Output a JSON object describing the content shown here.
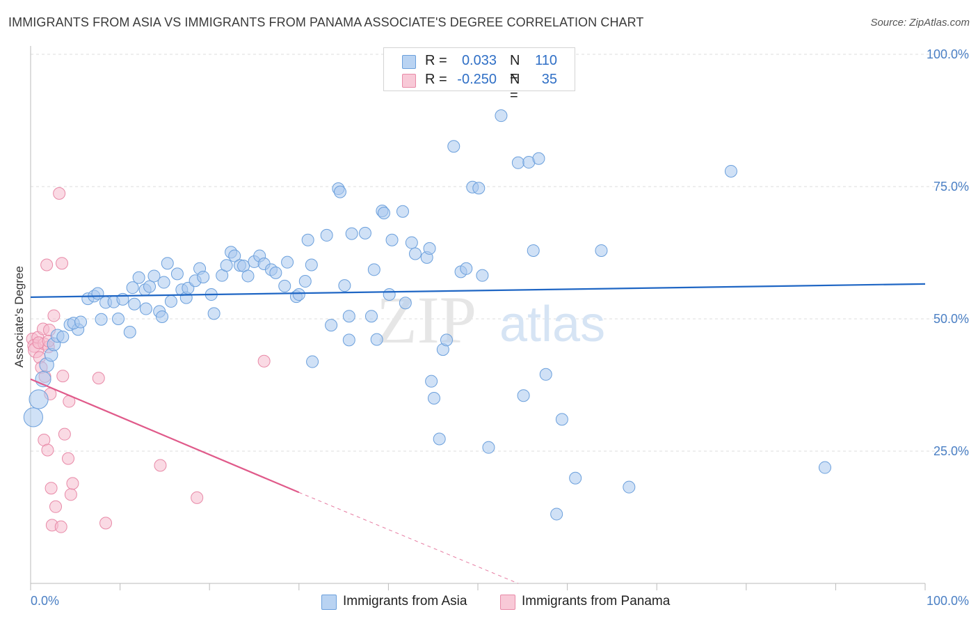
{
  "title": "IMMIGRANTS FROM ASIA VS IMMIGRANTS FROM PANAMA ASSOCIATE'S DEGREE CORRELATION CHART",
  "source": "Source: ZipAtlas.com",
  "colors": {
    "asia_fill": "#a9c8ef",
    "asia_stroke": "#6a9fdc",
    "asia_line": "#1f66c4",
    "panama_fill": "#f6bccd",
    "panama_stroke": "#e889a7",
    "panama_line": "#e05a8a",
    "axis_text": "#4a7fc4",
    "grid": "#dedede"
  },
  "legend": {
    "rows": [
      {
        "r_label": "R =",
        "r_value": "0.033",
        "n_label": "N =",
        "n_value": "110"
      },
      {
        "r_label": "R =",
        "r_value": "-0.250",
        "n_label": "N =",
        "n_value": "35"
      }
    ]
  },
  "bottom_legend": {
    "asia": "Immigrants from Asia",
    "panama": "Immigrants from Panama"
  },
  "chart_data": {
    "type": "scatter",
    "title": "IMMIGRANTS FROM ASIA VS IMMIGRANTS FROM PANAMA ASSOCIATE'S DEGREE CORRELATION CHART",
    "xlabel": "",
    "ylabel": "Associate's Degree",
    "xlim": [
      0,
      100
    ],
    "ylim": [
      0,
      100
    ],
    "x_tick_labels": [
      "0.0%",
      "100.0%"
    ],
    "y_ticks": [
      25,
      50,
      75,
      100
    ],
    "y_tick_labels": [
      "25.0%",
      "50.0%",
      "75.0%",
      "100.0%"
    ],
    "grid": true,
    "legend_position": "top-center",
    "watermark": "ZIPatlas",
    "series": [
      {
        "name": "Immigrants from Asia",
        "R": 0.033,
        "N": 110,
        "trend": {
          "x": [
            0,
            100
          ],
          "y": [
            54.1,
            56.6
          ]
        },
        "points": [
          [
            0.3,
            31.4,
            1.6
          ],
          [
            0.9,
            34.8,
            1.6
          ],
          [
            1.4,
            38.6,
            1.3
          ],
          [
            1.8,
            41.3,
            1.2
          ],
          [
            2.3,
            43.2,
            1.1
          ],
          [
            2.6,
            45.2,
            1.1
          ],
          [
            3.0,
            46.8,
            1.1
          ],
          [
            3.6,
            46.6,
            1.0
          ],
          [
            4.4,
            48.9,
            1.0
          ],
          [
            5.3,
            48.0,
            1.0
          ],
          [
            4.8,
            49.2,
            1.0
          ],
          [
            5.6,
            49.4,
            1.0
          ],
          [
            6.4,
            53.8,
            1.0
          ],
          [
            7.1,
            54.3,
            1.0
          ],
          [
            7.5,
            54.8,
            1.0
          ],
          [
            8.4,
            53.1,
            1.0
          ],
          [
            9.3,
            53.2,
            1.0
          ],
          [
            10.3,
            53.7,
            1.0
          ],
          [
            7.9,
            49.9,
            1.0
          ],
          [
            9.8,
            50.0,
            1.0
          ],
          [
            11.1,
            47.5,
            1.0
          ],
          [
            11.4,
            55.9,
            1.0
          ],
          [
            12.1,
            57.8,
            1.0
          ],
          [
            12.8,
            55.5,
            1.0
          ],
          [
            12.9,
            51.9,
            1.0
          ],
          [
            13.3,
            56.1,
            1.0
          ],
          [
            13.8,
            58.1,
            1.0
          ],
          [
            14.4,
            51.4,
            1.0
          ],
          [
            14.9,
            56.9,
            1.0
          ],
          [
            15.3,
            60.5,
            1.0
          ],
          [
            15.7,
            53.3,
            1.0
          ],
          [
            16.4,
            58.5,
            1.0
          ],
          [
            16.9,
            55.5,
            1.0
          ],
          [
            17.4,
            54.0,
            1.0
          ],
          [
            17.6,
            55.8,
            1.0
          ],
          [
            18.4,
            57.2,
            1.0
          ],
          [
            18.9,
            59.5,
            1.0
          ],
          [
            19.3,
            57.9,
            1.0
          ],
          [
            20.2,
            54.6,
            1.0
          ],
          [
            20.5,
            51.0,
            1.0
          ],
          [
            21.4,
            58.2,
            1.0
          ],
          [
            21.9,
            60.1,
            1.0
          ],
          [
            22.4,
            62.6,
            1.0
          ],
          [
            22.8,
            61.9,
            1.0
          ],
          [
            23.4,
            60.1,
            1.0
          ],
          [
            23.8,
            60.0,
            1.0
          ],
          [
            24.3,
            58.1,
            1.0
          ],
          [
            25.0,
            60.8,
            1.0
          ],
          [
            25.6,
            61.9,
            1.0
          ],
          [
            26.1,
            60.4,
            1.0
          ],
          [
            26.9,
            59.3,
            1.0
          ],
          [
            27.4,
            58.7,
            1.0
          ],
          [
            28.4,
            56.2,
            1.0
          ],
          [
            28.7,
            60.7,
            1.0
          ],
          [
            29.7,
            54.2,
            1.0
          ],
          [
            30.0,
            54.6,
            1.0
          ],
          [
            30.7,
            57.1,
            1.0
          ],
          [
            31.0,
            64.9,
            1.0
          ],
          [
            31.4,
            60.2,
            1.0
          ],
          [
            31.5,
            41.9,
            1.0
          ],
          [
            33.1,
            65.8,
            1.0
          ],
          [
            33.6,
            48.8,
            1.0
          ],
          [
            34.4,
            74.6,
            1.0
          ],
          [
            34.6,
            74.0,
            1.0
          ],
          [
            35.1,
            56.3,
            1.0
          ],
          [
            35.6,
            50.5,
            1.0
          ],
          [
            35.6,
            46.0,
            1.0
          ],
          [
            35.9,
            66.1,
            1.0
          ],
          [
            37.4,
            66.2,
            1.0
          ],
          [
            38.1,
            50.5,
            1.0
          ],
          [
            38.4,
            59.3,
            1.0
          ],
          [
            38.7,
            46.1,
            1.0
          ],
          [
            39.3,
            70.4,
            1.0
          ],
          [
            39.5,
            70.0,
            1.0
          ],
          [
            40.1,
            54.6,
            1.0
          ],
          [
            40.4,
            64.9,
            1.0
          ],
          [
            41.6,
            70.3,
            1.0
          ],
          [
            41.9,
            53.0,
            1.0
          ],
          [
            42.6,
            64.4,
            1.0
          ],
          [
            43.0,
            62.3,
            1.0
          ],
          [
            44.3,
            61.6,
            1.0
          ],
          [
            44.6,
            63.3,
            1.0
          ],
          [
            44.8,
            38.2,
            1.0
          ],
          [
            45.1,
            35.0,
            1.0
          ],
          [
            45.7,
            27.3,
            1.0
          ],
          [
            46.1,
            44.2,
            1.0
          ],
          [
            46.5,
            46.0,
            1.0
          ],
          [
            47.3,
            82.6,
            1.0
          ],
          [
            48.1,
            58.9,
            1.0
          ],
          [
            48.7,
            59.5,
            1.0
          ],
          [
            49.4,
            74.9,
            1.0
          ],
          [
            50.1,
            74.7,
            1.0
          ],
          [
            50.5,
            58.2,
            1.0
          ],
          [
            51.2,
            25.7,
            1.0
          ],
          [
            52.6,
            88.4,
            1.0
          ],
          [
            54.5,
            79.5,
            1.0
          ],
          [
            55.1,
            35.5,
            1.0
          ],
          [
            55.7,
            79.6,
            1.0
          ],
          [
            56.2,
            62.9,
            1.0
          ],
          [
            56.8,
            80.3,
            1.0
          ],
          [
            57.6,
            39.5,
            1.0
          ],
          [
            58.8,
            13.1,
            1.0
          ],
          [
            59.4,
            31.0,
            1.0
          ],
          [
            60.9,
            19.9,
            1.0
          ],
          [
            63.8,
            62.9,
            1.0
          ],
          [
            66.9,
            18.2,
            1.0
          ],
          [
            78.3,
            77.9,
            1.0
          ],
          [
            88.8,
            21.9,
            1.0
          ],
          [
            14.7,
            50.4,
            1.0
          ],
          [
            11.6,
            52.8,
            1.0
          ]
        ]
      },
      {
        "name": "Immigrants from Panama",
        "R": -0.25,
        "N": 35,
        "trend_solid": {
          "x": [
            0,
            30
          ],
          "y": [
            38.6,
            17.2
          ]
        },
        "trend_dashed": {
          "x": [
            30,
            54.5
          ],
          "y": [
            17.2,
            0
          ]
        },
        "points": [
          [
            0.2,
            46.2,
            1.0
          ],
          [
            0.4,
            44.9,
            1.1
          ],
          [
            0.6,
            44.1,
            1.3
          ],
          [
            0.8,
            46.5,
            1.0
          ],
          [
            1.0,
            42.7,
            1.0
          ],
          [
            1.2,
            40.8,
            1.0
          ],
          [
            1.4,
            48.1,
            1.0
          ],
          [
            1.5,
            45.3,
            1.0
          ],
          [
            1.6,
            39.1,
            1.0
          ],
          [
            1.8,
            60.2,
            1.0
          ],
          [
            2.0,
            44.7,
            1.0
          ],
          [
            2.1,
            47.9,
            1.0
          ],
          [
            2.2,
            35.8,
            1.0
          ],
          [
            2.3,
            18.0,
            1.0
          ],
          [
            2.4,
            11.0,
            1.0
          ],
          [
            2.6,
            50.6,
            1.0
          ],
          [
            2.8,
            14.5,
            1.0
          ],
          [
            3.2,
            73.7,
            1.0
          ],
          [
            3.4,
            10.7,
            1.0
          ],
          [
            3.5,
            60.5,
            1.0
          ],
          [
            3.6,
            39.2,
            1.0
          ],
          [
            3.8,
            28.2,
            1.0
          ],
          [
            4.2,
            23.6,
            1.0
          ],
          [
            4.3,
            34.4,
            1.0
          ],
          [
            4.5,
            16.8,
            1.0
          ],
          [
            4.7,
            18.9,
            1.0
          ],
          [
            7.6,
            38.8,
            1.0
          ],
          [
            8.4,
            11.4,
            1.0
          ],
          [
            14.5,
            22.3,
            1.0
          ],
          [
            18.6,
            16.2,
            1.0
          ],
          [
            26.1,
            42.0,
            1.0
          ],
          [
            1.5,
            27.1,
            1.0
          ],
          [
            1.9,
            25.2,
            1.0
          ],
          [
            0.9,
            45.5,
            1.0
          ],
          [
            2.0,
            45.8,
            1.0
          ]
        ]
      }
    ]
  }
}
